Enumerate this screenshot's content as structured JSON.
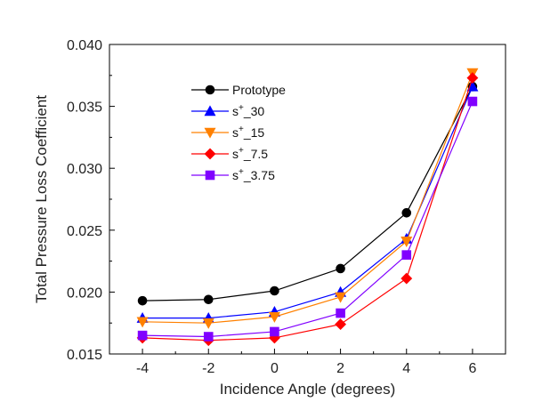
{
  "chart_data": {
    "type": "line",
    "xlabel": "Incidence Angle (degrees)",
    "ylabel": "Total Pressure Loss Coefficient",
    "xlim": [
      -5,
      7
    ],
    "ylim": [
      0.015,
      0.04
    ],
    "x_ticks": [
      "-4",
      "-2",
      "0",
      "2",
      "4",
      "6"
    ],
    "y_ticks": [
      "0.015",
      "0.020",
      "0.025",
      "0.030",
      "0.035",
      "0.040"
    ],
    "grid": false,
    "legend_position": "top-left inside",
    "x": [
      -4,
      -2,
      0,
      2,
      4,
      6
    ],
    "series": [
      {
        "name": "Prototype",
        "name_sup": "",
        "name_rest": "Prototype",
        "color": "#000000",
        "marker": "circle",
        "values": [
          0.0193,
          0.0194,
          0.0201,
          0.0219,
          0.0264,
          0.0366
        ]
      },
      {
        "name": "s+_30",
        "name_sup": "+",
        "name_rest": "_30",
        "color": "#0000ff",
        "marker": "triangle-up",
        "values": [
          0.0179,
          0.0179,
          0.0184,
          0.02,
          0.0243,
          0.0366
        ]
      },
      {
        "name": "s+_15",
        "name_sup": "+",
        "name_rest": "_15",
        "color": "#ff8000",
        "marker": "triangle-down",
        "values": [
          0.0176,
          0.0175,
          0.018,
          0.0196,
          0.0241,
          0.0377
        ]
      },
      {
        "name": "s+_7.5",
        "name_sup": "+",
        "name_rest": "_7.5",
        "color": "#ff0000",
        "marker": "diamond",
        "values": [
          0.0163,
          0.0161,
          0.0163,
          0.0174,
          0.0211,
          0.0373
        ]
      },
      {
        "name": "s+_3.75",
        "name_sup": "+",
        "name_rest": "_3.75",
        "color": "#8000ff",
        "marker": "square",
        "values": [
          0.0165,
          0.0164,
          0.0168,
          0.0183,
          0.023,
          0.0354
        ]
      }
    ]
  }
}
